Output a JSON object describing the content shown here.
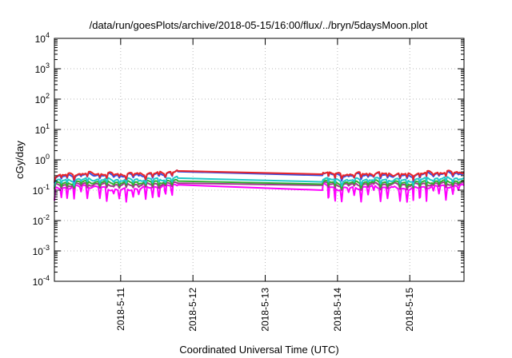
{
  "chart_data": {
    "type": "line",
    "title": "/data/run/goesPlots/archive/2018-05-15/16:00/flux/../bryn/5daysMoon.plot",
    "xlabel": "Coordinated Universal Time (UTC)",
    "ylabel": "cGy/day",
    "x_range": [
      "2018-05-10 02:00",
      "2018-05-15 18:00"
    ],
    "x_ticks": [
      "2018-5-11",
      "2018-5-12",
      "2018-5-13",
      "2018-5-14",
      "2018-5-15"
    ],
    "y_scale": "log",
    "y_range": [
      0.0001,
      10000
    ],
    "y_ticks": [
      {
        "base": "10",
        "exp": "-4"
      },
      {
        "base": "10",
        "exp": "-3"
      },
      {
        "base": "10",
        "exp": "-2"
      },
      {
        "base": "10",
        "exp": "-1"
      },
      {
        "base": "10",
        "exp": "0"
      },
      {
        "base": "10",
        "exp": "1"
      },
      {
        "base": "10",
        "exp": "2"
      },
      {
        "base": "10",
        "exp": "3"
      },
      {
        "base": "10",
        "exp": "4"
      }
    ],
    "grid": true,
    "legend": "none",
    "x": [
      "2018-05-10 02:00",
      "2018-05-10 12:00",
      "2018-05-11 00:00",
      "2018-05-11 12:00",
      "2018-05-11 19:00",
      "2018-05-13 19:00",
      "2018-05-14 00:00",
      "2018-05-14 12:00",
      "2018-05-15 00:00",
      "2018-05-15 06:00",
      "2018-05-15 18:00"
    ],
    "series": [
      {
        "color": "#e8262a",
        "values": [
          0.3,
          0.36,
          0.34,
          0.36,
          0.43,
          0.43,
          0.33,
          0.36,
          0.33,
          0.38,
          0.4
        ]
      },
      {
        "color": "#3a4de0",
        "values": [
          0.27,
          0.33,
          0.31,
          0.33,
          0.41,
          0.41,
          0.3,
          0.33,
          0.3,
          0.35,
          0.37
        ]
      },
      {
        "color": "#20c8c8",
        "values": [
          0.2,
          0.23,
          0.22,
          0.23,
          0.25,
          0.25,
          0.21,
          0.23,
          0.21,
          0.24,
          0.25
        ]
      },
      {
        "color": "#30b030",
        "values": [
          0.16,
          0.19,
          0.18,
          0.19,
          0.2,
          0.2,
          0.17,
          0.19,
          0.17,
          0.19,
          0.2
        ]
      },
      {
        "color": "#a03a8c",
        "values": [
          0.14,
          0.16,
          0.15,
          0.16,
          0.17,
          0.17,
          0.15,
          0.16,
          0.15,
          0.16,
          0.17
        ]
      },
      {
        "color": "#ff00ff",
        "values": [
          0.11,
          0.14,
          0.1,
          0.13,
          0.15,
          0.15,
          0.11,
          0.13,
          0.11,
          0.13,
          0.14
        ]
      }
    ]
  }
}
